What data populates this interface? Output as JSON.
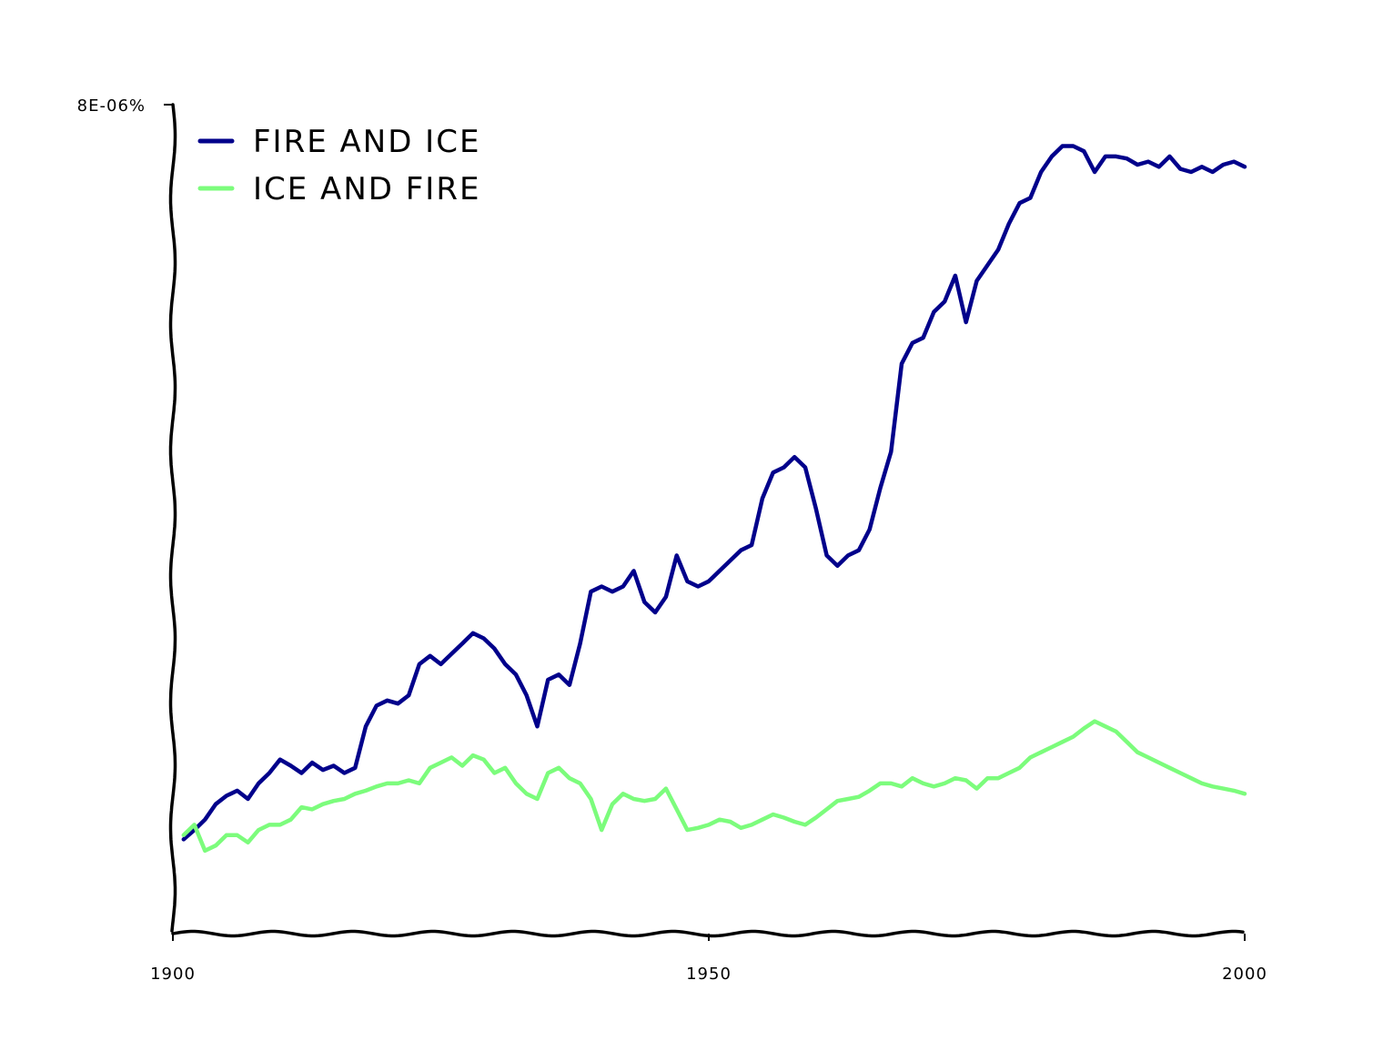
{
  "chart_data": {
    "type": "line",
    "title": "",
    "xlabel": "",
    "ylabel": "",
    "xlim": [
      1900,
      2000
    ],
    "ylim": [
      0,
      8e-06
    ],
    "x_ticks": [
      {
        "value": 1900,
        "label": "1900"
      },
      {
        "value": 1950,
        "label": "1950"
      },
      {
        "value": 2000,
        "label": "2000"
      }
    ],
    "y_ticks": [
      {
        "value": 8e-06,
        "label": "8E-06%"
      }
    ],
    "grid": false,
    "legend_position": "top-left",
    "x": [
      1901,
      1902,
      1903,
      1904,
      1905,
      1906,
      1907,
      1908,
      1909,
      1910,
      1911,
      1912,
      1913,
      1914,
      1915,
      1916,
      1917,
      1918,
      1919,
      1920,
      1921,
      1922,
      1923,
      1924,
      1925,
      1926,
      1927,
      1928,
      1929,
      1930,
      1931,
      1932,
      1933,
      1934,
      1935,
      1936,
      1937,
      1938,
      1939,
      1940,
      1941,
      1942,
      1943,
      1944,
      1945,
      1946,
      1947,
      1948,
      1949,
      1950,
      1951,
      1952,
      1953,
      1954,
      1955,
      1956,
      1957,
      1958,
      1959,
      1960,
      1961,
      1962,
      1963,
      1964,
      1965,
      1966,
      1967,
      1968,
      1969,
      1970,
      1971,
      1972,
      1973,
      1974,
      1975,
      1976,
      1977,
      1978,
      1979,
      1980,
      1981,
      1982,
      1983,
      1984,
      1985,
      1986,
      1987,
      1988,
      1989,
      1990,
      1991,
      1992,
      1993,
      1994,
      1995,
      1996,
      1997,
      1998,
      1999,
      2000
    ],
    "series": [
      {
        "name": "FIRE AND ICE",
        "color": "#00008b",
        "values": [
          9.1e-07,
          1e-06,
          1.1e-06,
          1.25e-06,
          1.33e-06,
          1.38e-06,
          1.3e-06,
          1.45e-06,
          1.55e-06,
          1.68e-06,
          1.62e-06,
          1.55e-06,
          1.65e-06,
          1.58e-06,
          1.62e-06,
          1.55e-06,
          1.6e-06,
          2e-06,
          2.2e-06,
          2.25e-06,
          2.22e-06,
          2.3e-06,
          2.6e-06,
          2.68e-06,
          2.6e-06,
          2.7e-06,
          2.8e-06,
          2.9e-06,
          2.85e-06,
          2.75e-06,
          2.6e-06,
          2.5e-06,
          2.3e-06,
          2e-06,
          2.45e-06,
          2.5e-06,
          2.4e-06,
          2.8e-06,
          3.3e-06,
          3.35e-06,
          3.3e-06,
          3.35e-06,
          3.5e-06,
          3.2e-06,
          3.1e-06,
          3.25e-06,
          3.65e-06,
          3.4e-06,
          3.35e-06,
          3.4e-06,
          3.5e-06,
          3.6e-06,
          3.7e-06,
          3.75e-06,
          4.2e-06,
          4.45e-06,
          4.5e-06,
          4.6e-06,
          4.5e-06,
          4.1e-06,
          3.65e-06,
          3.55e-06,
          3.65e-06,
          3.7e-06,
          3.9e-06,
          4.3e-06,
          4.65e-06,
          5.5e-06,
          5.7e-06,
          5.75e-06,
          6e-06,
          6.1e-06,
          6.35e-06,
          5.9e-06,
          6.3e-06,
          6.45e-06,
          6.6e-06,
          6.85e-06,
          7.05e-06,
          7.1e-06,
          7.35e-06,
          7.5e-06,
          7.6e-06,
          7.6e-06,
          7.55e-06,
          7.35e-06,
          7.5e-06,
          7.5e-06,
          7.48e-06,
          7.42e-06,
          7.45e-06,
          7.4e-06,
          7.5e-06,
          7.38e-06,
          7.35e-06,
          7.4e-06,
          7.35e-06,
          7.42e-06,
          7.45e-06,
          7.4e-06
        ]
      },
      {
        "name": "ICE AND FIRE",
        "color": "#7cfc7c",
        "values": [
          9.5e-07,
          1.05e-06,
          8e-07,
          8.5e-07,
          9.5e-07,
          9.5e-07,
          8.8e-07,
          1e-06,
          1.05e-06,
          1.05e-06,
          1.1e-06,
          1.22e-06,
          1.2e-06,
          1.25e-06,
          1.28e-06,
          1.3e-06,
          1.35e-06,
          1.38e-06,
          1.42e-06,
          1.45e-06,
          1.45e-06,
          1.48e-06,
          1.45e-06,
          1.6e-06,
          1.65e-06,
          1.7e-06,
          1.62e-06,
          1.72e-06,
          1.68e-06,
          1.55e-06,
          1.6e-06,
          1.45e-06,
          1.35e-06,
          1.3e-06,
          1.55e-06,
          1.6e-06,
          1.5e-06,
          1.45e-06,
          1.3e-06,
          1e-06,
          1.25e-06,
          1.35e-06,
          1.3e-06,
          1.28e-06,
          1.3e-06,
          1.4e-06,
          1.2e-06,
          1e-06,
          1.02e-06,
          1.05e-06,
          1.1e-06,
          1.08e-06,
          1.02e-06,
          1.05e-06,
          1.1e-06,
          1.15e-06,
          1.12e-06,
          1.08e-06,
          1.05e-06,
          1.12e-06,
          1.2e-06,
          1.28e-06,
          1.3e-06,
          1.32e-06,
          1.38e-06,
          1.45e-06,
          1.45e-06,
          1.42e-06,
          1.5e-06,
          1.45e-06,
          1.42e-06,
          1.45e-06,
          1.5e-06,
          1.48e-06,
          1.4e-06,
          1.5e-06,
          1.5e-06,
          1.55e-06,
          1.6e-06,
          1.7e-06,
          1.75e-06,
          1.8e-06,
          1.85e-06,
          1.9e-06,
          1.98e-06,
          2.05e-06,
          2e-06,
          1.95e-06,
          1.85e-06,
          1.75e-06,
          1.7e-06,
          1.65e-06,
          1.6e-06,
          1.55e-06,
          1.5e-06,
          1.45e-06,
          1.42e-06,
          1.4e-06,
          1.38e-06,
          1.35e-06
        ]
      }
    ]
  }
}
